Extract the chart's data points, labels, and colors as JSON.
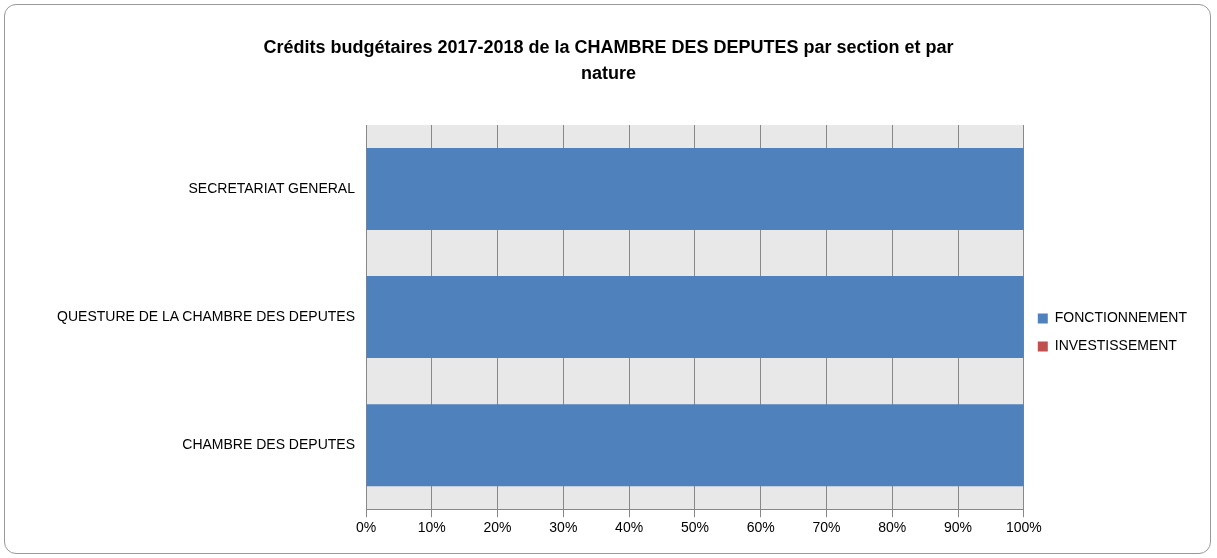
{
  "chart_data": {
    "type": "bar",
    "title": "Crédits budgétaires 2017-2018 de la CHAMBRE DES DEPUTES par section et par nature",
    "orientation": "horizontal",
    "stacked": true,
    "categories": [
      "SECRETARIAT GENERAL",
      "QUESTURE DE LA CHAMBRE DES DEPUTES",
      "CHAMBRE DES DEPUTES"
    ],
    "series": [
      {
        "name": "FONCTIONNEMENT",
        "color": "#4f81bd",
        "values": [
          100,
          100,
          100
        ]
      },
      {
        "name": "INVESTISSEMENT",
        "color": "#c0504d",
        "values": [
          0,
          0,
          0
        ]
      }
    ],
    "xlim": [
      0,
      100
    ],
    "xticks": [
      {
        "value": 0,
        "label": "0%"
      },
      {
        "value": 10,
        "label": "10%"
      },
      {
        "value": 20,
        "label": "20%"
      },
      {
        "value": 30,
        "label": "30%"
      },
      {
        "value": 40,
        "label": "40%"
      },
      {
        "value": 50,
        "label": "50%"
      },
      {
        "value": 60,
        "label": "60%"
      },
      {
        "value": 70,
        "label": "70%"
      },
      {
        "value": 80,
        "label": "80%"
      },
      {
        "value": 90,
        "label": "90%"
      },
      {
        "value": 100,
        "label": "100%"
      }
    ],
    "grid": "x",
    "legend": "right"
  }
}
